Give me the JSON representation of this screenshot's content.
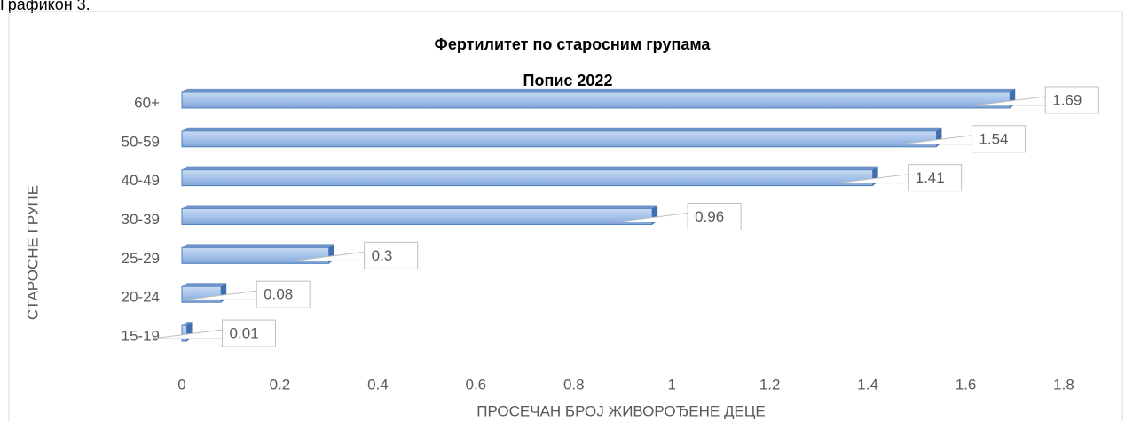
{
  "caption": "Графикон 3.",
  "chart_data": {
    "type": "barh",
    "title": "Фертилитет по старосним групама",
    "subtitle": "Попис 2022",
    "x_label": "ПРОСЕЧАН БРОЈ ЖИВОРОЂЕНЕ ДЕЦЕ",
    "y_label": "СТАРОСНЕ ГРУПЕ",
    "categories": [
      "60+",
      "50-59",
      "40-49",
      "30-39",
      "25-29",
      "20-24",
      "15-19"
    ],
    "values": [
      1.69,
      1.54,
      1.41,
      0.96,
      0.3,
      0.08,
      0.01
    ],
    "color": "#95b3e0",
    "xlim": [
      0,
      1.8
    ],
    "xticks": [
      0,
      0.2,
      0.4,
      0.6,
      0.8,
      1,
      1.2,
      1.4,
      1.6,
      1.8
    ],
    "grid": false
  }
}
